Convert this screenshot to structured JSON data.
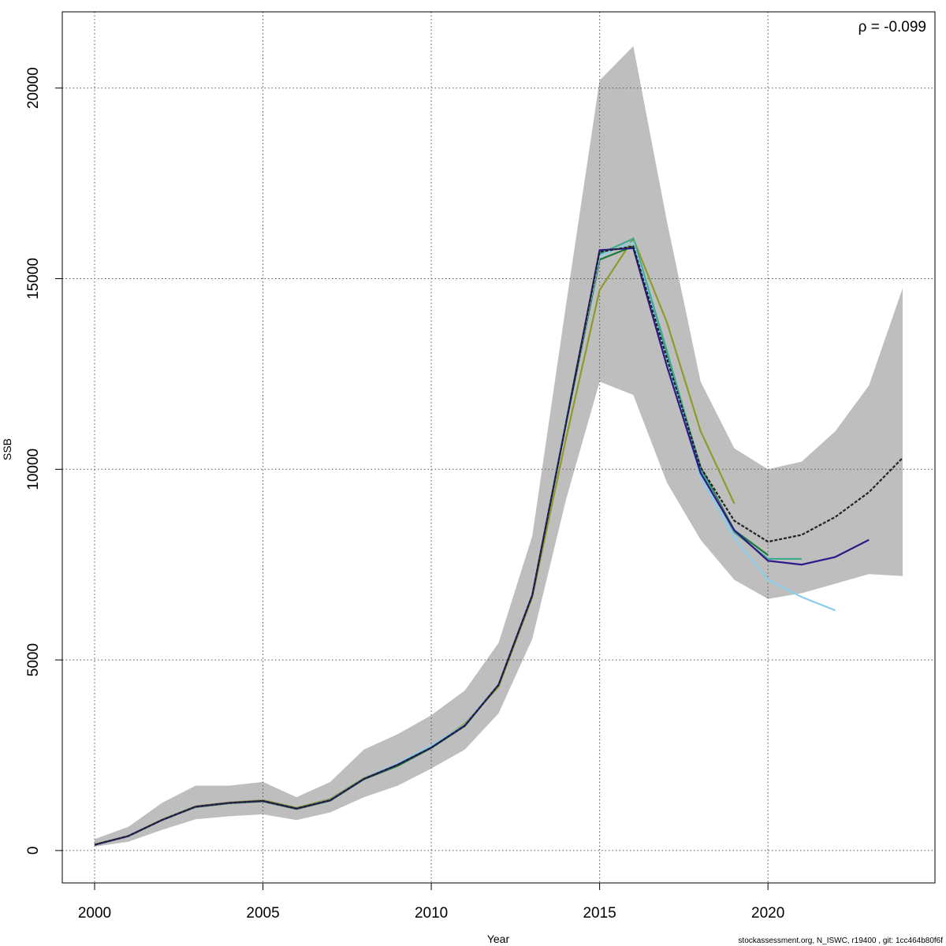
{
  "chart_data": {
    "type": "line",
    "annotation": "ρ = -0.099",
    "footer": "stockassessment.org, N_ISWC, r19400 , git: 1cc464b80f6f",
    "x_label": "Year",
    "y_label": "SSB",
    "x": [
      2000,
      2001,
      2002,
      2003,
      2004,
      2005,
      2006,
      2007,
      2008,
      2009,
      2010,
      2011,
      2012,
      2013,
      2014,
      2015,
      2016,
      2017,
      2018,
      2019,
      2020,
      2021,
      2022,
      2023,
      2024
    ],
    "xlim": [
      1999.04,
      2024.96
    ],
    "ylim": [
      -850,
      22000
    ],
    "xticks": [
      2000,
      2005,
      2010,
      2015,
      2020
    ],
    "yticks": [
      0,
      5000,
      10000,
      15000,
      20000
    ],
    "grid": true,
    "band": {
      "color": "#bebebe",
      "lower": [
        100,
        230,
        540,
        820,
        900,
        950,
        800,
        1000,
        1400,
        1700,
        2150,
        2650,
        3600,
        5550,
        9200,
        12300,
        11950,
        9650,
        8150,
        7100,
        6600,
        6750,
        7000,
        7250,
        7200
      ],
      "upper": [
        300,
        620,
        1250,
        1700,
        1700,
        1800,
        1400,
        1800,
        2650,
        3050,
        3550,
        4200,
        5450,
        8250,
        14300,
        20200,
        21100,
        16500,
        12300,
        10550,
        10000,
        10200,
        11000,
        12200,
        14750
      ]
    },
    "series": [
      {
        "color": "#8f9a2a",
        "values": [
          160,
          380,
          810,
          1160,
          1260,
          1320,
          1120,
          1350,
          1900,
          2260,
          2720,
          3330,
          4300,
          6650,
          10800,
          14700,
          16050,
          13850,
          11000,
          9100,
          null,
          null,
          null,
          null,
          null
        ]
      },
      {
        "color": "#1a7a3a",
        "values": [
          150,
          375,
          800,
          1140,
          1240,
          1290,
          1090,
          1310,
          1870,
          2220,
          2690,
          3270,
          4350,
          6700,
          11200,
          15500,
          15850,
          13000,
          10050,
          8400,
          7750,
          null,
          null,
          null,
          null
        ]
      },
      {
        "color": "#3aaa8f",
        "values": [
          150,
          380,
          800,
          1150,
          1250,
          1300,
          1100,
          1320,
          1880,
          2250,
          2710,
          3290,
          4360,
          6710,
          11250,
          15650,
          16050,
          13100,
          10000,
          8350,
          7650,
          7650,
          null,
          null,
          null
        ]
      },
      {
        "color": "#87ceeb",
        "values": [
          150,
          380,
          800,
          1150,
          1250,
          1300,
          1100,
          1330,
          1890,
          2280,
          2750,
          3300,
          4370,
          6720,
          11250,
          15600,
          15950,
          12900,
          9800,
          8200,
          7100,
          6650,
          6300,
          null,
          null
        ]
      },
      {
        "color": "#2e1a8a",
        "values": [
          150,
          380,
          800,
          1150,
          1250,
          1300,
          1100,
          1320,
          1880,
          2250,
          2700,
          3280,
          4350,
          6700,
          11200,
          15750,
          15800,
          12700,
          9900,
          8400,
          7600,
          7500,
          7700,
          8150,
          null
        ]
      },
      {
        "color": "#222222",
        "dash": true,
        "values": [
          150,
          380,
          800,
          1150,
          1250,
          1300,
          1100,
          1320,
          1880,
          2250,
          2700,
          3280,
          4350,
          6700,
          11200,
          15700,
          15850,
          12900,
          10050,
          8650,
          8100,
          8280,
          8750,
          9400,
          10300
        ]
      }
    ]
  }
}
